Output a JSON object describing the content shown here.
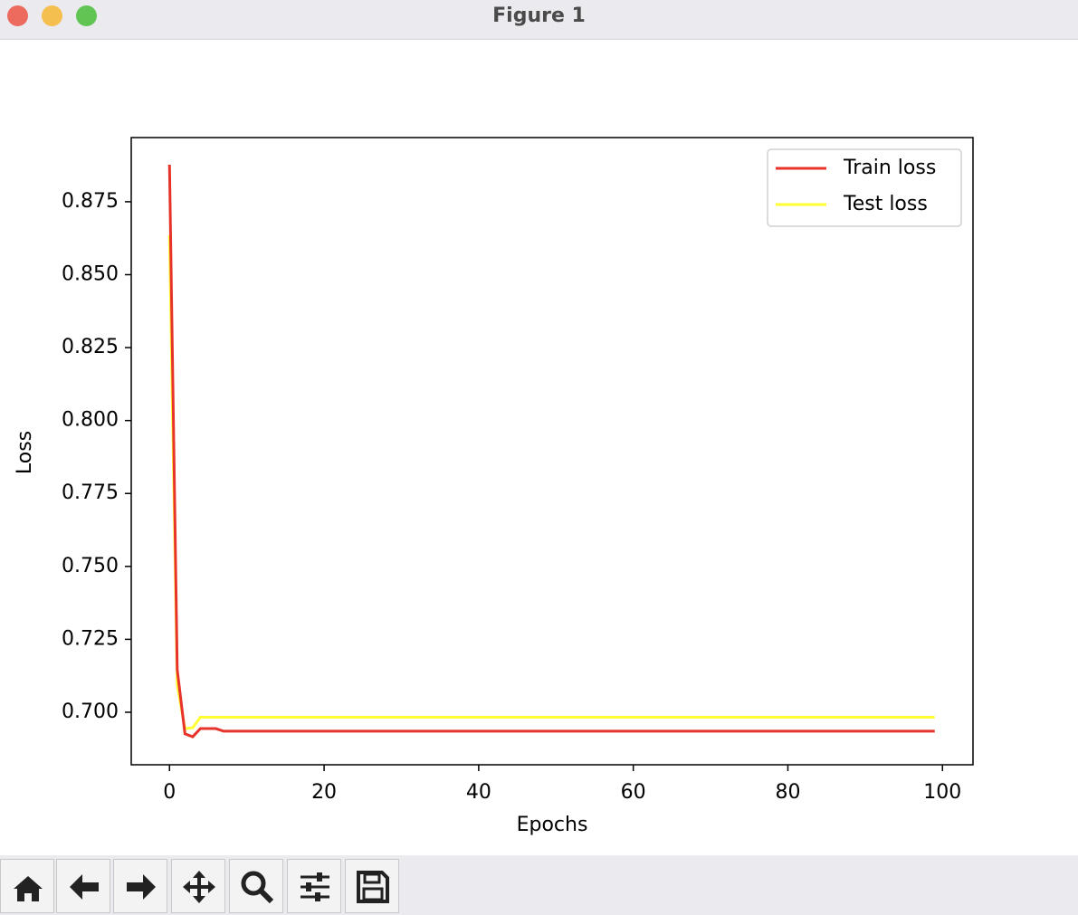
{
  "window": {
    "title": "Figure 1"
  },
  "chart_data": {
    "type": "line",
    "x_label": "Epochs",
    "y_label": "Loss",
    "x": [
      0,
      1,
      2,
      3,
      4,
      5,
      6,
      7,
      8,
      9,
      10,
      11,
      12,
      13,
      14,
      15,
      16,
      17,
      18,
      19,
      20,
      21,
      22,
      23,
      24,
      25,
      26,
      27,
      28,
      29,
      30,
      31,
      32,
      33,
      34,
      35,
      36,
      37,
      38,
      39,
      40,
      41,
      42,
      43,
      44,
      45,
      46,
      47,
      48,
      49,
      50,
      51,
      52,
      53,
      54,
      55,
      56,
      57,
      58,
      59,
      60,
      61,
      62,
      63,
      64,
      65,
      66,
      67,
      68,
      69,
      70,
      71,
      72,
      73,
      74,
      75,
      76,
      77,
      78,
      79,
      80,
      81,
      82,
      83,
      84,
      85,
      86,
      87,
      88,
      89,
      90,
      91,
      92,
      93,
      94,
      95,
      96,
      97,
      98,
      99
    ],
    "series": [
      {
        "name": "Train loss",
        "color": "#e8332a",
        "values": [
          0.8877,
          0.7146,
          0.6926,
          0.6916,
          0.6944,
          0.6944,
          0.6944,
          0.6935,
          0.6935,
          0.6935,
          0.6935,
          0.6935,
          0.6935,
          0.6935,
          0.6935,
          0.6935,
          0.6935,
          0.6935,
          0.6935,
          0.6935,
          0.6935,
          0.6935,
          0.6935,
          0.6935,
          0.6935,
          0.6935,
          0.6935,
          0.6935,
          0.6935,
          0.6935,
          0.6935,
          0.6935,
          0.6935,
          0.6935,
          0.6935,
          0.6935,
          0.6935,
          0.6935,
          0.6935,
          0.6935,
          0.6935,
          0.6935,
          0.6935,
          0.6935,
          0.6935,
          0.6935,
          0.6935,
          0.6935,
          0.6935,
          0.6935,
          0.6935,
          0.6935,
          0.6935,
          0.6935,
          0.6935,
          0.6935,
          0.6935,
          0.6935,
          0.6935,
          0.6935,
          0.6935,
          0.6935,
          0.6935,
          0.6935,
          0.6935,
          0.6935,
          0.6935,
          0.6935,
          0.6935,
          0.6935,
          0.6935,
          0.6935,
          0.6935,
          0.6935,
          0.6935,
          0.6935,
          0.6935,
          0.6935,
          0.6935,
          0.6935,
          0.6935,
          0.6935,
          0.6935,
          0.6935,
          0.6935,
          0.6935,
          0.6935,
          0.6935,
          0.6935,
          0.6935,
          0.6935,
          0.6935,
          0.6935,
          0.6935,
          0.6935,
          0.6935,
          0.6935,
          0.6935,
          0.6935,
          0.6935
        ]
      },
      {
        "name": "Test loss",
        "color": "#ffff33",
        "values": [
          0.8635,
          0.7093,
          0.6944,
          0.6947,
          0.6983,
          0.6983,
          0.6983,
          0.6983,
          0.6983,
          0.6983,
          0.6983,
          0.6983,
          0.6983,
          0.6983,
          0.6983,
          0.6983,
          0.6983,
          0.6983,
          0.6983,
          0.6983,
          0.6983,
          0.6983,
          0.6983,
          0.6983,
          0.6983,
          0.6983,
          0.6983,
          0.6983,
          0.6983,
          0.6983,
          0.6983,
          0.6983,
          0.6983,
          0.6983,
          0.6983,
          0.6983,
          0.6983,
          0.6983,
          0.6983,
          0.6983,
          0.6983,
          0.6983,
          0.6983,
          0.6983,
          0.6983,
          0.6983,
          0.6983,
          0.6983,
          0.6983,
          0.6983,
          0.6983,
          0.6983,
          0.6983,
          0.6983,
          0.6983,
          0.6983,
          0.6983,
          0.6983,
          0.6983,
          0.6983,
          0.6983,
          0.6983,
          0.6983,
          0.6983,
          0.6983,
          0.6983,
          0.6983,
          0.6983,
          0.6983,
          0.6983,
          0.6983,
          0.6983,
          0.6983,
          0.6983,
          0.6983,
          0.6983,
          0.6983,
          0.6983,
          0.6983,
          0.6983,
          0.6983,
          0.6983,
          0.6983,
          0.6983,
          0.6983,
          0.6983,
          0.6983,
          0.6983,
          0.6983,
          0.6983,
          0.6983,
          0.6983,
          0.6983,
          0.6983,
          0.6983,
          0.6983,
          0.6983,
          0.6983,
          0.6983,
          0.6983
        ]
      }
    ],
    "xlim": [
      -4.95,
      103.95
    ],
    "xticks": [
      0,
      20,
      40,
      60,
      80,
      100
    ],
    "ylim": [
      0.682,
      0.897
    ],
    "yticks": [
      {
        "value": 0.7,
        "label": "0.700"
      },
      0.725,
      {
        "value": 0.75,
        "label": "0.750"
      },
      0.775,
      {
        "value": 0.8,
        "label": "0.800"
      },
      0.825,
      {
        "value": 0.85,
        "label": "0.850"
      },
      0.875
    ],
    "grid": false,
    "legend": "upper right"
  }
}
